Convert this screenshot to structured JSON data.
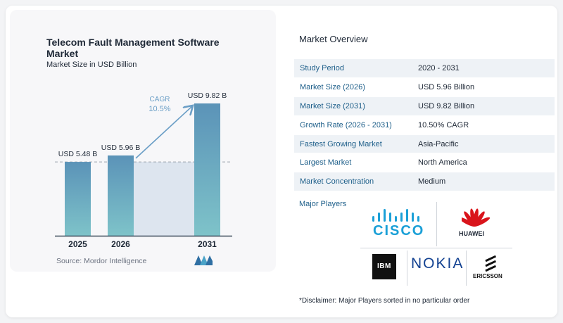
{
  "chart_data": {
    "type": "bar",
    "title": "Telecom Fault Management Software Market",
    "subtitle": "Market Size in USD Billion",
    "categories": [
      "2025",
      "2026",
      "2031"
    ],
    "values": [
      5.48,
      5.96,
      9.82
    ],
    "data_labels": [
      "USD 5.48 B",
      "USD 5.96 B",
      "USD 9.82 B"
    ],
    "annotation": {
      "label": "CAGR",
      "value": "10.5%"
    },
    "ylim": [
      0,
      10
    ],
    "colors": {
      "bar_top": "#5b93b8",
      "bar_bottom": "#7ec3c9",
      "baseline": "#3b4a5a",
      "band": "#dde5ef",
      "arrow": "#6a9ec6",
      "dashed": "#9aa3ad"
    }
  },
  "source": "Source:  Mordor Intelligence",
  "overview": {
    "title": "Market Overview",
    "rows": [
      {
        "label": "Study Period",
        "value": "2020 - 2031"
      },
      {
        "label": "Market Size (2026)",
        "value": "USD 5.96 Billion"
      },
      {
        "label": "Market Size (2031)",
        "value": "USD 9.82 Billion"
      },
      {
        "label": "Growth Rate (2026 - 2031)",
        "value": "10.50% CAGR"
      },
      {
        "label": "Fastest Growing Market",
        "value": "Asia-Pacific"
      },
      {
        "label": "Largest Market",
        "value": "North America"
      },
      {
        "label": "Market Concentration",
        "value": "Medium"
      }
    ],
    "players_title": "Major Players",
    "players": [
      "CISCO",
      "HUAWEI",
      "IBM",
      "NOKIA",
      "ERICSSON"
    ],
    "disclaimer": "*Disclaimer: Major Players sorted in no particular order"
  }
}
